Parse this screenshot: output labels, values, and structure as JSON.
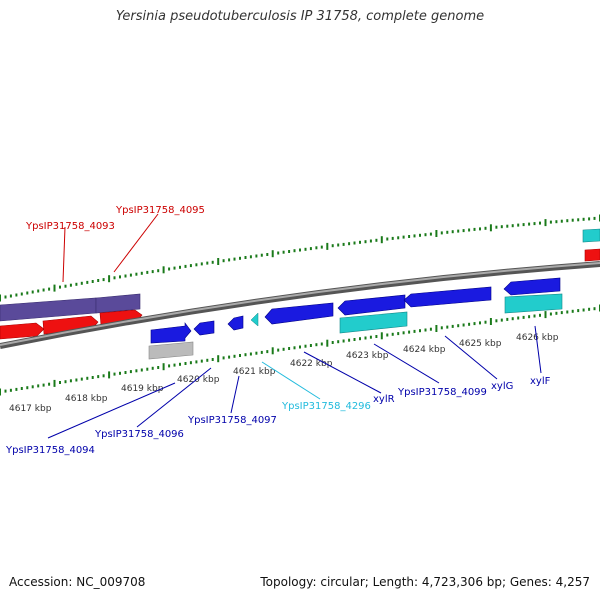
{
  "title": "Yersinia pseudotuberculosis IP 31758, complete genome",
  "footer": {
    "accession": "Accession: NC_009708",
    "summary": "Topology: circular; Length: 4,723,306 bp; Genes: 4,257"
  },
  "colors": {
    "tick": "#1a7a1a",
    "backbone": "#808080",
    "red_gene": "#ee1111",
    "purple_gene": "#5a4a9a",
    "blue_gene": "#1a1ae0",
    "cyan_gene": "#22cccc",
    "grey_gene": "#bbbbbb",
    "label_red": "#cc0000",
    "label_blue": "#0000aa",
    "label_cyan": "#22bbdd"
  },
  "kbp_labels": [
    "4617 kbp",
    "4618 kbp",
    "4619 kbp",
    "4620 kbp",
    "4621 kbp",
    "4622 kbp",
    "4623 kbp",
    "4624 kbp",
    "4625 kbp",
    "4626 kbp"
  ],
  "gene_labels": {
    "YpsIP31758_4093": "YpsIP31758_4093",
    "YpsIP31758_4095": "YpsIP31758_4095",
    "YpsIP31758_4094": "YpsIP31758_4094",
    "YpsIP31758_4096": "YpsIP31758_4096",
    "YpsIP31758_4097": "YpsIP31758_4097",
    "YpsIP31758_4296": "YpsIP31758_4296",
    "xylR": "xylR",
    "YpsIP31758_4099": "YpsIP31758_4099",
    "xylG": "xylG",
    "xylF": "xylF"
  }
}
